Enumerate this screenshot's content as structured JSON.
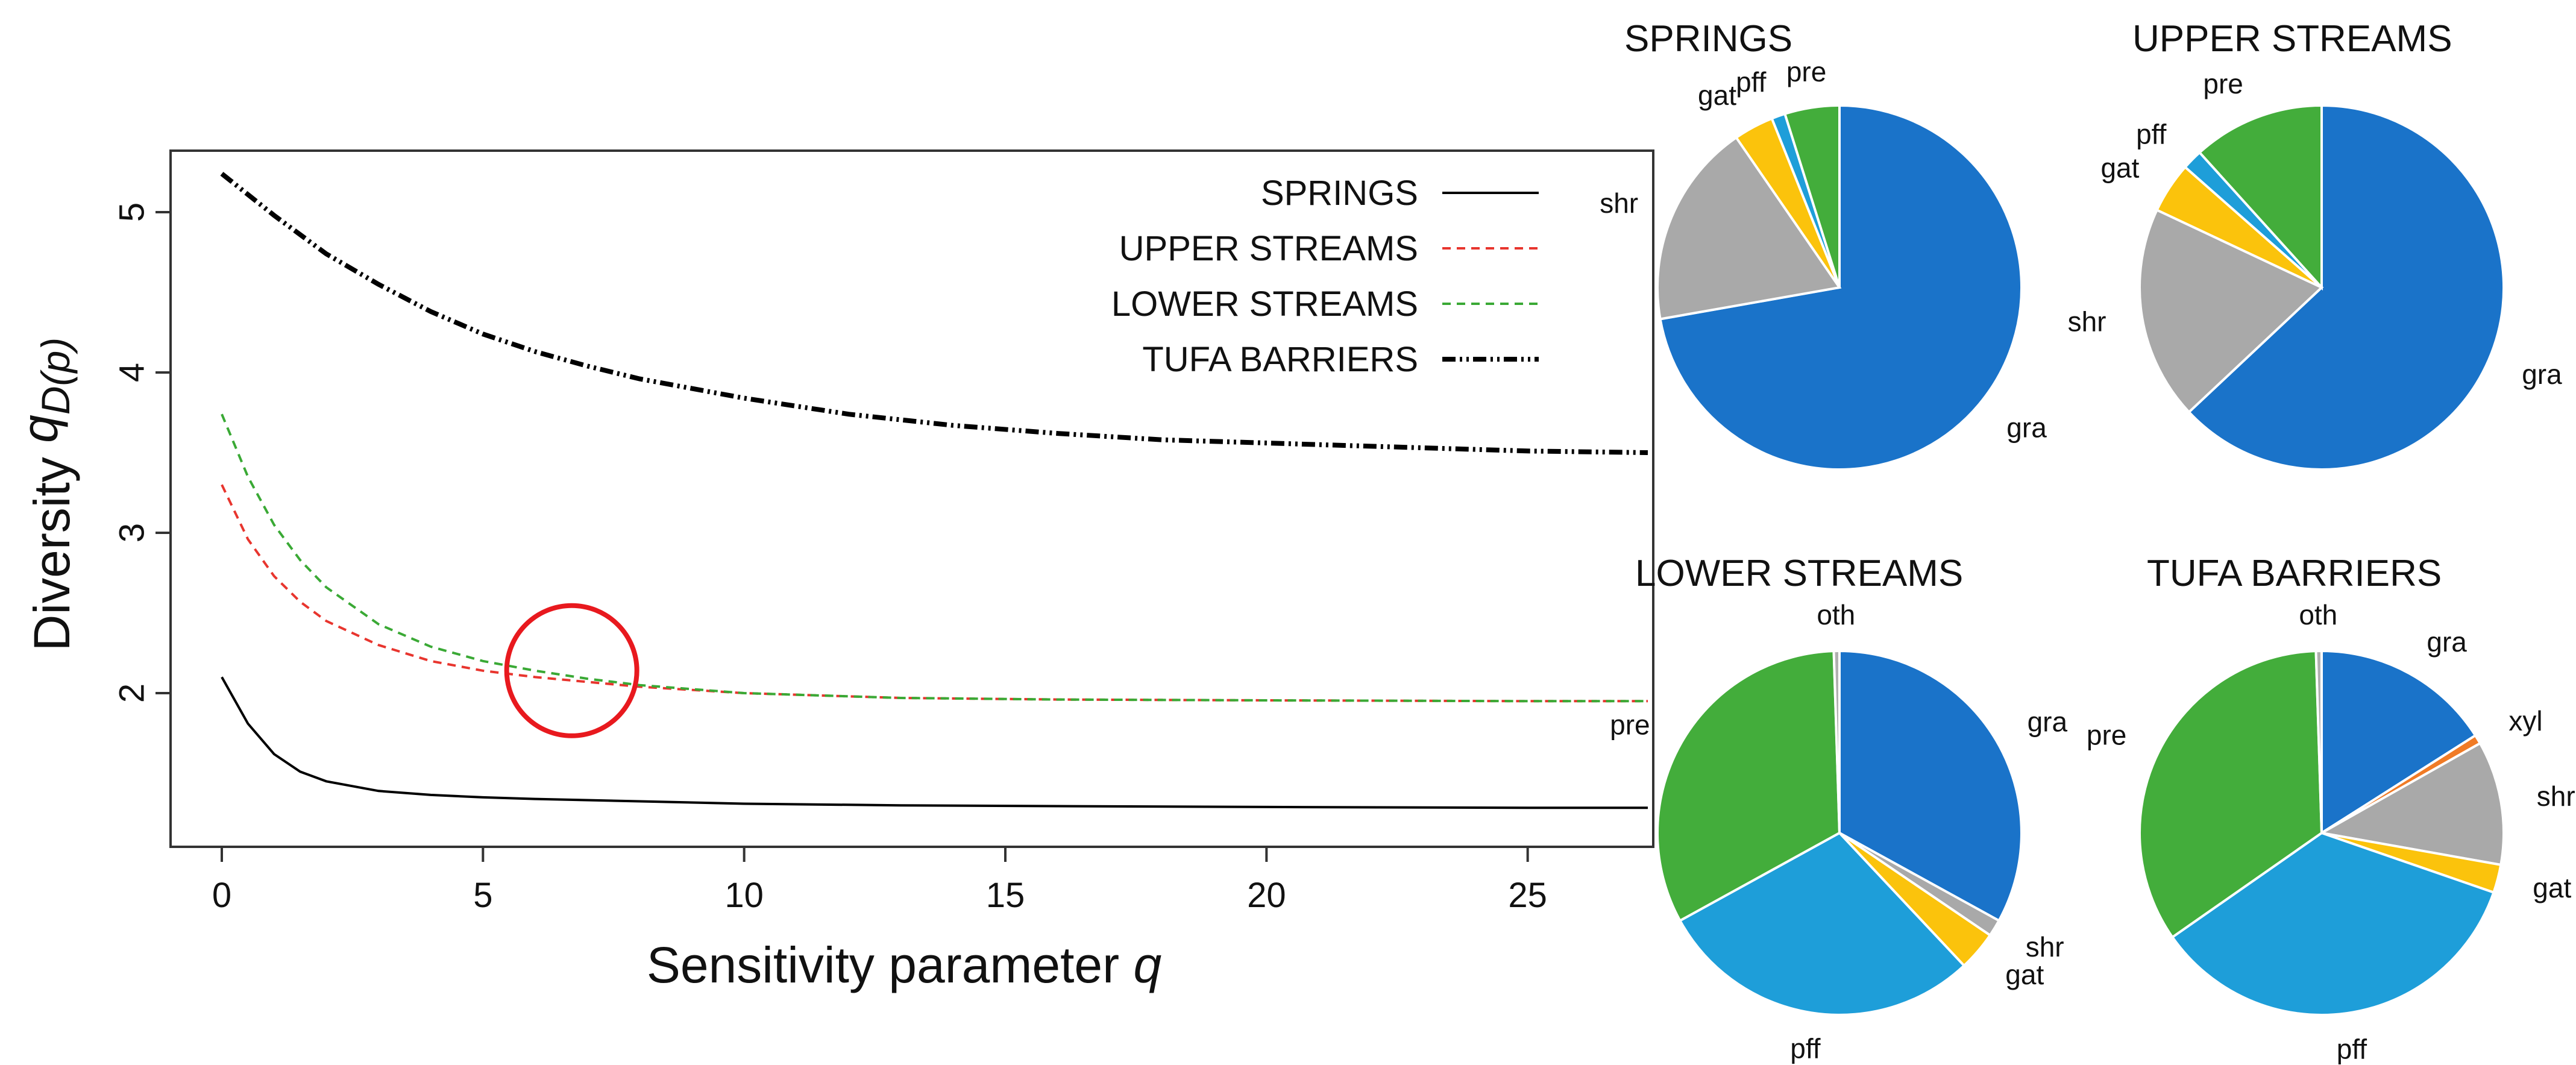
{
  "chart_data": [
    {
      "type": "line",
      "xlabel": "Sensitivity parameter",
      "xlabel_var": "q",
      "ylabel": "Diversity",
      "ylabel_q": "q",
      "ylabel_D": "D(p)",
      "xlim": [
        0,
        27.3
      ],
      "ylim": [
        1.1,
        5.4
      ],
      "xticks": [
        0,
        5,
        10,
        15,
        20,
        25
      ],
      "yticks": [
        2,
        3,
        4,
        5
      ],
      "legend_position": "top-right",
      "annotation": {
        "type": "circle",
        "x": 6.7,
        "y": 2.14,
        "color": "#e8191e"
      },
      "series": [
        {
          "name": "SPRINGS",
          "color": "#000000",
          "dash": "solid",
          "x": [
            0,
            0.5,
            1,
            1.5,
            2,
            3,
            4,
            5,
            6,
            8,
            10,
            13,
            16,
            20,
            25,
            27.3
          ],
          "y": [
            2.1,
            1.81,
            1.62,
            1.51,
            1.45,
            1.39,
            1.365,
            1.35,
            1.34,
            1.325,
            1.31,
            1.3,
            1.295,
            1.29,
            1.285,
            1.285
          ]
        },
        {
          "name": "UPPER STREAMS",
          "color": "#e8352e",
          "dash": "dashed",
          "x": [
            0,
            0.5,
            1,
            1.5,
            2,
            3,
            4,
            5,
            6,
            7,
            8,
            10,
            13,
            16,
            20,
            25,
            27.3
          ],
          "y": [
            3.3,
            2.96,
            2.73,
            2.57,
            2.45,
            2.3,
            2.2,
            2.14,
            2.1,
            2.07,
            2.04,
            2.0,
            1.97,
            1.96,
            1.955,
            1.95,
            1.95
          ]
        },
        {
          "name": "LOWER STREAMS",
          "color": "#3aa935",
          "dash": "dashed",
          "x": [
            0,
            0.5,
            1,
            1.5,
            2,
            3,
            4,
            5,
            6,
            7,
            8,
            10,
            13,
            16,
            20,
            25,
            27.3
          ],
          "y": [
            3.74,
            3.35,
            3.05,
            2.83,
            2.66,
            2.43,
            2.29,
            2.2,
            2.14,
            2.09,
            2.05,
            2.0,
            1.97,
            1.96,
            1.955,
            1.95,
            1.95
          ]
        },
        {
          "name": "TUFA BARRIERS",
          "color": "#000000",
          "dash": "dashdot",
          "x": [
            0,
            1,
            2,
            3,
            4,
            5,
            6,
            7,
            8,
            10,
            12,
            14,
            16,
            18,
            20,
            22,
            25,
            27.3
          ],
          "y": [
            5.24,
            4.98,
            4.74,
            4.55,
            4.38,
            4.24,
            4.13,
            4.04,
            3.96,
            3.84,
            3.74,
            3.67,
            3.62,
            3.58,
            3.56,
            3.54,
            3.51,
            3.5
          ]
        }
      ]
    },
    {
      "type": "pie",
      "title": "SPRINGS",
      "slices": [
        {
          "label": "gra",
          "value": 71.5,
          "color": "#1a73c9"
        },
        {
          "label": "shr",
          "value": 18.0,
          "color": "#a9a9a9"
        },
        {
          "label": "gat",
          "value": 3.5,
          "color": "#fbc30c"
        },
        {
          "label": "pff",
          "value": 1.2,
          "color": "#1e9ed9"
        },
        {
          "label": "pre",
          "value": 4.8,
          "color": "#43ad3b"
        }
      ]
    },
    {
      "type": "pie",
      "title": "UPPER STREAMS",
      "slices": [
        {
          "label": "gra",
          "value": 63.0,
          "color": "#1a73c9"
        },
        {
          "label": "shr",
          "value": 19.0,
          "color": "#a9a9a9"
        },
        {
          "label": "gat",
          "value": 4.5,
          "color": "#fbc30c"
        },
        {
          "label": "pff",
          "value": 1.8,
          "color": "#1e9ed9"
        },
        {
          "label": "pre",
          "value": 11.7,
          "color": "#43ad3b"
        }
      ]
    },
    {
      "type": "pie",
      "title": "LOWER STREAMS",
      "slices": [
        {
          "label": "gra",
          "value": 33.0,
          "color": "#1a73c9"
        },
        {
          "label": "shr",
          "value": 1.5,
          "color": "#a9a9a9"
        },
        {
          "label": "gat",
          "value": 3.5,
          "color": "#fbc30c"
        },
        {
          "label": "pff",
          "value": 29.0,
          "color": "#1e9ed9"
        },
        {
          "label": "pre",
          "value": 32.5,
          "color": "#43ad3b"
        },
        {
          "label": "oth",
          "value": 0.5,
          "color": "#b0b0b0"
        }
      ]
    },
    {
      "type": "pie",
      "title": "TUFA BARRIERS",
      "slices": [
        {
          "label": "gra",
          "value": 16.0,
          "color": "#1a73c9"
        },
        {
          "label": "xyl",
          "value": 0.8,
          "color": "#f07b26"
        },
        {
          "label": "shr",
          "value": 11.0,
          "color": "#a9a9a9"
        },
        {
          "label": "gat",
          "value": 2.5,
          "color": "#fbc30c"
        },
        {
          "label": "pff",
          "value": 35.0,
          "color": "#1e9ed9"
        },
        {
          "label": "pre",
          "value": 34.2,
          "color": "#43ad3b"
        },
        {
          "label": "oth",
          "value": 0.5,
          "color": "#b0b0b0"
        }
      ]
    }
  ]
}
